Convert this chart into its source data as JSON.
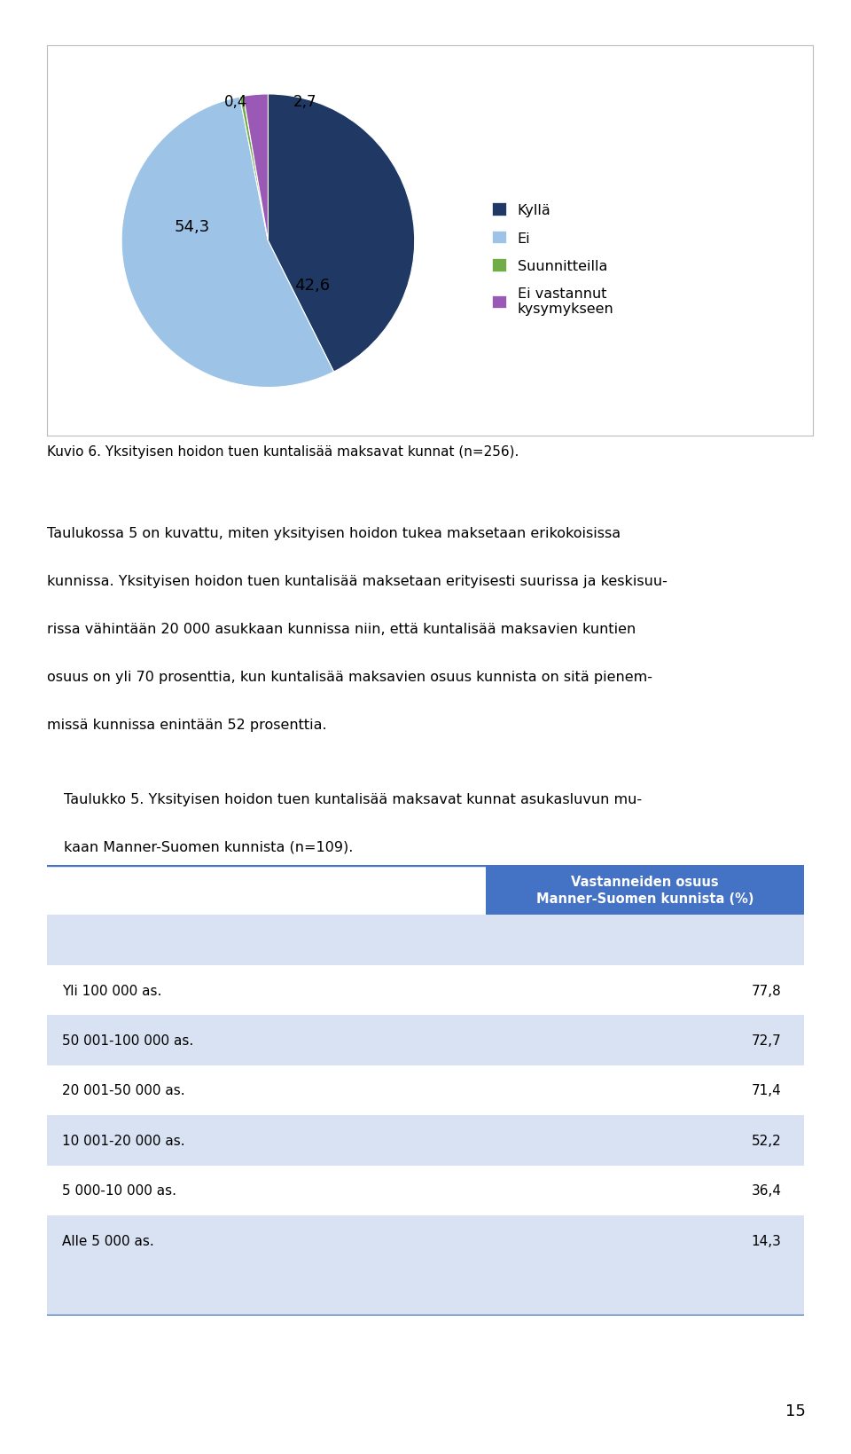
{
  "pie_values": [
    42.6,
    54.3,
    0.4,
    2.7
  ],
  "pie_colors": [
    "#1F3864",
    "#9DC3E6",
    "#70AD47",
    "#9B59B6"
  ],
  "pie_label_values": [
    "42,6",
    "54,3",
    "0,4",
    "2,7"
  ],
  "legend_labels": [
    "Kyllä",
    "Ei",
    "Suunnitteilla",
    "Ei vastannut\nkysymykseen"
  ],
  "figure_caption": "Kuvio 6. Yksityisen hoidon tuen kuntalisää maksavat kunnat (n=256).",
  "para_lines": [
    "Taulukossa 5 on kuvattu, miten yksityisen hoidon tukea maksetaan erikokoisissa",
    "kunnissa. Yksityisen hoidon tuen kuntalisää maksetaan erityisesti suurissa ja keskisuu-",
    "rissa vähintään 20 000 asukkaan kunnissa niin, että kuntalisää maksavien kuntien",
    "osuus on yli 70 prosenttia, kun kuntalisää maksavien osuus kunnista on sitä pienem-",
    "missä kunnissa enintään 52 prosenttia."
  ],
  "table_cap_lines": [
    "Taulukko 5. Yksityisen hoidon tuen kuntalisää maksavat kunnat asukasluvun mu-",
    "kaan Manner-Suomen kunnista (n=109)."
  ],
  "table_header_right": "Vastanneiden osuus\nManner-Suomen kunnista (%)",
  "table_rows": [
    [
      "Yli 100 000 as.",
      "77,8"
    ],
    [
      "50 001-100 000 as.",
      "72,7"
    ],
    [
      "20 001-50 000 as.",
      "71,4"
    ],
    [
      "10 001-20 000 as.",
      "52,2"
    ],
    [
      "5 000-10 000 as.",
      "36,4"
    ],
    [
      "Alle 5 000 as.",
      "14,3"
    ]
  ],
  "header_bg": "#4472C4",
  "header_fg": "#FFFFFF",
  "row_bg_white": "#FFFFFF",
  "row_bg_blue": "#D9E2F3",
  "page_number": "15",
  "background_color": "#FFFFFF",
  "border_color": "#4472C4"
}
